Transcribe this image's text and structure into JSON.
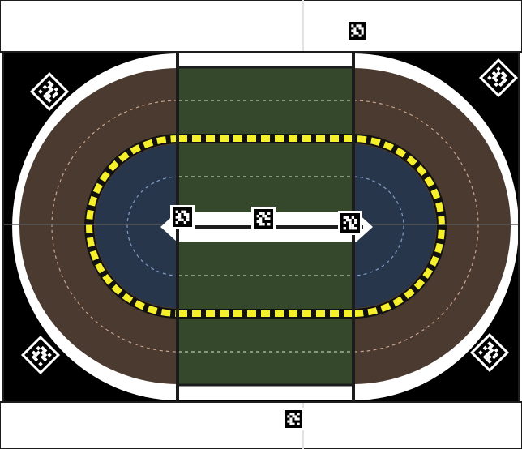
{
  "colors": {
    "background": "#000000",
    "outer_ring": "#ffffff",
    "outer_track": "#4b3a2f",
    "inner_track": "#27364a",
    "infield": "#ffffff",
    "green_zone": "#35482c",
    "dash_yellow": "#f6ef2b",
    "dash_black": "#111111",
    "dashed_guide_outer": "#c9a48e",
    "dashed_guide_inner": "#7f9cc6",
    "frame": "#1c1c1c",
    "margin_white": "#ffffff"
  },
  "markers": [
    {
      "id": "marker-top-center",
      "orientation": "square"
    },
    {
      "id": "marker-bottom-center",
      "orientation": "square"
    },
    {
      "id": "marker-top-left",
      "orientation": "diamond"
    },
    {
      "id": "marker-top-right",
      "orientation": "diamond"
    },
    {
      "id": "marker-bottom-left",
      "orientation": "diamond"
    },
    {
      "id": "marker-bottom-right",
      "orientation": "diamond"
    },
    {
      "id": "marker-infield-left",
      "orientation": "square"
    },
    {
      "id": "marker-infield-center",
      "orientation": "square"
    },
    {
      "id": "marker-infield-right",
      "orientation": "square"
    }
  ]
}
